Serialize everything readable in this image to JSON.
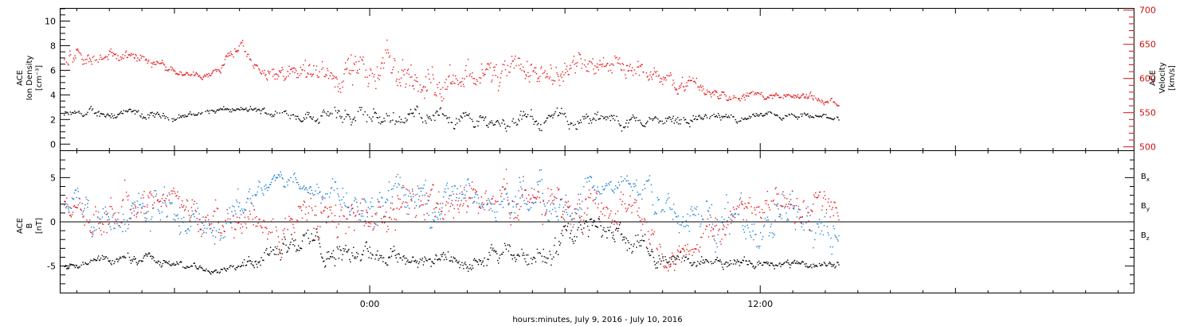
{
  "colors": {
    "black": "#000000",
    "red": "#e8181c",
    "blue": "#1a7fd6",
    "velocity_axis": "#d01010"
  },
  "xlabel": "hours:minutes, July  9, 2016 - July 10, 2016",
  "chart_data": [
    {
      "type": "scatter",
      "panel": "plasma",
      "ylabel_left": [
        "ACE",
        "Ion Density",
        "[cm⁻³]"
      ],
      "ylabel_right": [
        "ACE",
        "Velocity",
        "[km/s]"
      ],
      "x_range_hours": [
        -9.5,
        23.5
      ],
      "x_ticks": [
        {
          "value": 0,
          "label": "0:00"
        },
        {
          "value": 12,
          "label": "12:00"
        }
      ],
      "y_left": {
        "range": [
          -0.5,
          11
        ],
        "ticks": [
          0,
          2,
          4,
          6,
          8,
          10
        ]
      },
      "y_right": {
        "range": [
          495,
          702
        ],
        "ticks": [
          500,
          550,
          600,
          650,
          700
        ]
      },
      "data_extent_hours": [
        -9.4,
        14.4
      ],
      "series": [
        {
          "color": "black",
          "axis": "left",
          "x": [
            -9,
            -8,
            -7,
            -6,
            -5,
            -4,
            -3,
            -2,
            -1,
            0,
            1,
            2,
            3,
            4,
            5,
            6,
            7,
            8,
            9,
            10,
            11,
            12,
            13,
            14
          ],
          "y": [
            2.4,
            2.6,
            2.3,
            2.2,
            2.7,
            2.8,
            2.6,
            2.5,
            2.3,
            2.1,
            2.3,
            2.5,
            2.0,
            1.9,
            1.9,
            2.1,
            1.9,
            1.8,
            2.0,
            2.2,
            2.1,
            2.3,
            2.2,
            2.2
          ],
          "spread": [
            0.4,
            0.5,
            0.4,
            0.3,
            0.3,
            0.3,
            0.4,
            0.6,
            0.8,
            0.9,
            0.8,
            0.8,
            0.7,
            0.8,
            0.7,
            0.7,
            0.7,
            0.6,
            0.6,
            0.5,
            0.4,
            0.3,
            0.3,
            0.3
          ]
        },
        {
          "color": "red",
          "axis": "right",
          "x": [
            -9.4,
            -8.5,
            -8,
            -7.5,
            -7,
            -6.5,
            -6,
            -5.5,
            -5,
            -4.6,
            -4.4,
            -4,
            -3.5,
            -3,
            -2.5,
            -2,
            -1.5,
            -1,
            -0.5,
            0,
            0.5,
            1,
            1.5,
            2,
            2.5,
            3,
            3.5,
            4,
            4.5,
            5,
            5.5,
            6,
            6.5,
            7,
            7.5,
            8,
            8.5,
            9,
            9.5,
            10,
            10.5,
            11,
            11.5,
            12,
            12.5,
            13,
            13.5,
            14,
            14.4
          ],
          "y": [
            618,
            625,
            640,
            630,
            628,
            623,
            615,
            608,
            607,
            612,
            633,
            645,
            612,
            605,
            608,
            615,
            610,
            608,
            615,
            600,
            620,
            610,
            596,
            598,
            605,
            608,
            612,
            600,
            605,
            615,
            618,
            620,
            615,
            630,
            625,
            618,
            610,
            600,
            598,
            590,
            582,
            580,
            577,
            575,
            575,
            573,
            575,
            568,
            567
          ],
          "spread": [
            18,
            15,
            12,
            12,
            10,
            8,
            8,
            6,
            6,
            8,
            10,
            10,
            12,
            15,
            18,
            25,
            28,
            30,
            32,
            32,
            30,
            30,
            30,
            30,
            28,
            28,
            28,
            28,
            28,
            26,
            25,
            25,
            25,
            22,
            22,
            20,
            18,
            16,
            14,
            12,
            10,
            8,
            8,
            6,
            6,
            6,
            8,
            5,
            4
          ]
        }
      ]
    },
    {
      "type": "scatter",
      "panel": "magnetic_field",
      "ylabel_left": [
        "ACE",
        "B",
        "[nT]"
      ],
      "x_range_hours": [
        -9.5,
        23.5
      ],
      "x_ticks": [
        {
          "value": 0,
          "label": "0:00"
        },
        {
          "value": 12,
          "label": "12:00"
        }
      ],
      "y_left": {
        "range": [
          -8,
          8
        ],
        "ticks": [
          -5,
          0,
          5
        ],
        "zero_line": true
      },
      "data_extent_hours": [
        -9.4,
        14.4
      ],
      "legend": [
        {
          "text": "B",
          "sub": "x",
          "color": "black"
        },
        {
          "text": "B",
          "sub": "y",
          "color": "blue"
        },
        {
          "text": "B",
          "sub": "z",
          "color": "red"
        }
      ],
      "series": [
        {
          "name": "Bx",
          "color": "black",
          "x": [
            -9,
            -8,
            -7,
            -6,
            -5,
            -4,
            -3,
            -2,
            -1,
            0,
            1,
            2,
            3,
            4,
            5,
            6,
            7,
            8,
            9,
            10,
            11,
            12,
            13,
            14
          ],
          "y": [
            -5,
            -4.5,
            -3.8,
            -4.8,
            -5.2,
            -4.9,
            -2.5,
            -2.0,
            -3.5,
            -3.0,
            -4.0,
            -4.2,
            -4.5,
            -4.0,
            -3.6,
            -2.5,
            -0.5,
            -2.0,
            -4.0,
            -4.3,
            -4.5,
            -4.4,
            -4.6,
            -4.8
          ],
          "spread": [
            0.5,
            0.6,
            0.8,
            0.5,
            0.4,
            0.5,
            1.5,
            1.5,
            1.5,
            1.5,
            1.2,
            1.0,
            1.0,
            1.2,
            1.5,
            2.0,
            1.8,
            1.5,
            1.0,
            0.8,
            0.7,
            0.6,
            0.5,
            0.5
          ]
        },
        {
          "name": "By",
          "color": "blue",
          "x": [
            -9,
            -8,
            -7,
            -6,
            -5,
            -4,
            -3,
            -2,
            -1,
            0,
            1,
            2,
            3,
            4,
            5,
            6,
            7,
            8,
            9,
            10,
            11,
            12,
            13,
            14
          ],
          "y": [
            2.5,
            0,
            1.5,
            2,
            -1,
            1,
            5.5,
            4,
            3.5,
            3.0,
            3.0,
            2.5,
            3.0,
            3.5,
            2.5,
            2.0,
            3.5,
            4.5,
            1.5,
            0.5,
            -0.5,
            0.5,
            0,
            -1
          ],
          "spread": [
            1.5,
            2.5,
            2.5,
            2.0,
            2.0,
            2.5,
            1.0,
            1.5,
            2.0,
            2.5,
            2.5,
            2.5,
            2.0,
            2.0,
            2.5,
            2.5,
            1.5,
            1.0,
            2.5,
            2.5,
            3.0,
            3.0,
            3.0,
            3.0
          ]
        },
        {
          "name": "Bz",
          "color": "red",
          "x": [
            -9,
            -8,
            -7,
            -6,
            -5,
            -4,
            -3,
            -2,
            -1,
            0,
            1,
            2,
            3,
            4,
            5,
            6,
            7,
            8,
            9,
            10,
            11,
            12,
            13,
            14
          ],
          "y": [
            1.0,
            0.5,
            2.0,
            3.5,
            -1.0,
            0.0,
            -1.0,
            1.5,
            0.5,
            1.5,
            1.0,
            1.5,
            2.0,
            2.5,
            2.0,
            1.0,
            2.0,
            3.0,
            -3.5,
            -3.0,
            1.0,
            2.5,
            2.0,
            1.5
          ],
          "spread": [
            2.0,
            2.5,
            2.0,
            1.5,
            2.5,
            2.5,
            2.5,
            3.0,
            3.0,
            3.0,
            3.0,
            3.0,
            2.5,
            2.5,
            2.5,
            3.0,
            2.5,
            2.0,
            1.5,
            2.0,
            2.5,
            2.0,
            2.5,
            2.5
          ]
        }
      ]
    }
  ]
}
